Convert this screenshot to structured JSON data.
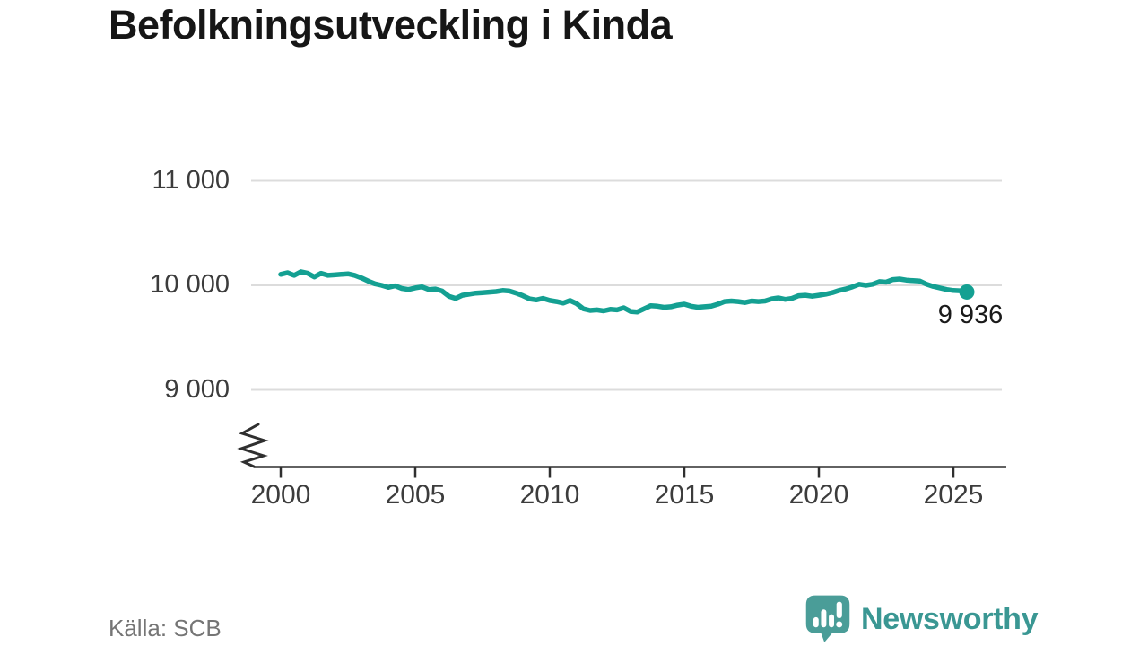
{
  "chart_data": {
    "type": "line",
    "title": "Befolkningsutveckling i Kinda",
    "x_start": 2000,
    "x_step": 0.25,
    "values": [
      10105,
      10120,
      10095,
      10130,
      10115,
      10080,
      10115,
      10095,
      10100,
      10105,
      10110,
      10095,
      10070,
      10040,
      10015,
      10000,
      9980,
      9995,
      9970,
      9960,
      9975,
      9985,
      9960,
      9965,
      9945,
      9895,
      9875,
      9905,
      9915,
      9925,
      9930,
      9935,
      9940,
      9950,
      9945,
      9925,
      9900,
      9870,
      9860,
      9875,
      9855,
      9845,
      9830,
      9855,
      9825,
      9775,
      9760,
      9765,
      9755,
      9770,
      9765,
      9785,
      9750,
      9745,
      9775,
      9805,
      9800,
      9790,
      9795,
      9810,
      9820,
      9800,
      9790,
      9795,
      9800,
      9820,
      9845,
      9850,
      9845,
      9835,
      9850,
      9845,
      9850,
      9870,
      9880,
      9865,
      9875,
      9900,
      9905,
      9895,
      9905,
      9915,
      9930,
      9950,
      9965,
      9985,
      10010,
      10000,
      10010,
      10035,
      10030,
      10055,
      10060,
      10050,
      10045,
      10040,
      10010,
      9990,
      9975,
      9960,
      9950,
      9948,
      9936
    ],
    "end_value": 9936,
    "end_label": "9 936",
    "yticks": [
      {
        "value": 11000,
        "label": "11 000"
      },
      {
        "value": 10000,
        "label": "10 000"
      },
      {
        "value": 9000,
        "label": "9 000"
      }
    ],
    "xticks": [
      {
        "value": 2000,
        "label": "2000"
      },
      {
        "value": 2005,
        "label": "2005"
      },
      {
        "value": 2010,
        "label": "2010"
      },
      {
        "value": 2015,
        "label": "2015"
      },
      {
        "value": 2020,
        "label": "2020"
      },
      {
        "value": 2025,
        "label": "2025"
      }
    ],
    "ylim": [
      8800,
      11200
    ],
    "xlim": [
      2000,
      2026.5
    ],
    "axis_break": true,
    "grid": true,
    "line_color": "#14a092",
    "grid_color": "#dcdcdc",
    "axis_color": "#2f2f2f"
  },
  "footer": {
    "source": "Källa: SCB",
    "brand": "Newsworthy",
    "brand_color": "#3a9793"
  }
}
